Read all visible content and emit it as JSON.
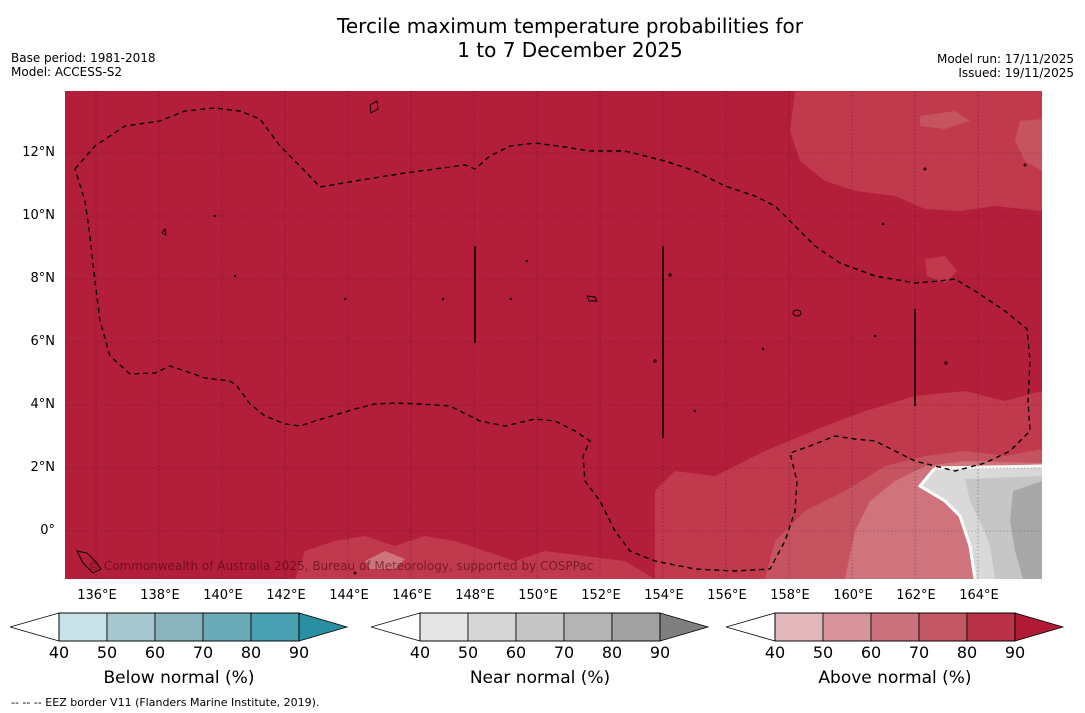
{
  "title": {
    "line1": "Tercile maximum temperature probabilities for",
    "line2": "1 to 7 December 2025"
  },
  "meta": {
    "base_period": "Base period: 1981-2018",
    "model": "Model: ACCESS-S2",
    "model_run": "Model run: 17/11/2025",
    "issued": "Issued: 19/11/2025"
  },
  "copyright": "© Commonwealth of Australia 2025, Bureau of Meteorology, supported by COSPPac",
  "map": {
    "lat_labels": [
      "12°N",
      "10°N",
      "8°N",
      "6°N",
      "4°N",
      "2°N",
      "0°"
    ],
    "lon_labels": [
      "136°E",
      "138°E",
      "140°E",
      "142°E",
      "144°E",
      "146°E",
      "148°E",
      "150°E",
      "152°E",
      "154°E",
      "156°E",
      "158°E",
      "160°E",
      "162°E",
      "164°E"
    ],
    "colors": {
      "above_80": "#b31e3a",
      "above_70": "#c0394c",
      "above_60": "#c55460",
      "above_50": "#cf747c",
      "near_50": "#d9d9d9",
      "near_70": "#c6c6c6",
      "near_80": "#a8a8a8"
    }
  },
  "colorbars": [
    {
      "name": "below",
      "title": "Below normal (%)",
      "ticks": [
        "40",
        "50",
        "60",
        "70",
        "80",
        "90"
      ],
      "colors": [
        "#c9e2e8",
        "#a7c7cf",
        "#8ab5bf",
        "#6aabb8",
        "#48a0b1",
        "#2a8fa3"
      ]
    },
    {
      "name": "near",
      "title": "Near normal (%)",
      "ticks": [
        "40",
        "50",
        "60",
        "70",
        "80",
        "90"
      ],
      "colors": [
        "#e6e6e6",
        "#d6d6d6",
        "#c6c6c6",
        "#b4b4b4",
        "#a2a2a2",
        "#7f7f7f"
      ]
    },
    {
      "name": "above",
      "title": "Above normal (%)",
      "ticks": [
        "40",
        "50",
        "60",
        "70",
        "80",
        "90"
      ],
      "colors": [
        "#e3b8bd",
        "#d8949b",
        "#cc727c",
        "#c35662",
        "#b93247",
        "#b11a35"
      ]
    }
  ],
  "footer": "--  --  -- EEZ border V11 (Flanders Marine Institute, 2019)."
}
